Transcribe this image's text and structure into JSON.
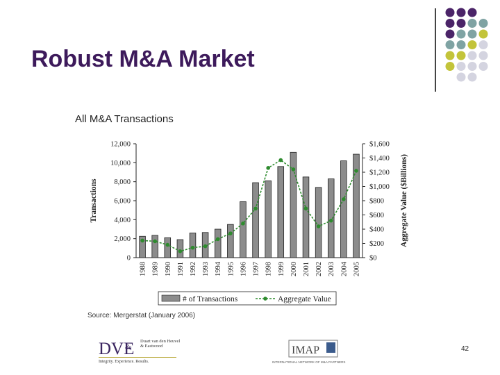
{
  "slide": {
    "title": "Robust M&A Market",
    "page_number": "42",
    "source": "Source: Mergerstat (January 2006)"
  },
  "colors": {
    "title": "#3d1a5b",
    "bar": "#8c8c8c",
    "line": "#2e8b2e",
    "dot_purple": "#4b2468",
    "dot_teal": "#7fa3a3",
    "dot_olive": "#c3c43a",
    "dot_grey": "#d4d4e0"
  },
  "logos": {
    "dve": {
      "mark": "DVE",
      "amp": "&",
      "firm": "Duart van den Heuvel & Eastwood",
      "tagline": "Integrity. Experience. Results."
    },
    "imap": {
      "mark": "IMAP",
      "tagline": "INTERNATIONAL NETWORK OF M&A PARTNERS"
    }
  },
  "chart_data": {
    "type": "bar",
    "title": "All M&A Transactions",
    "categories": [
      "1988",
      "1989",
      "1990",
      "1991",
      "1992",
      "1993",
      "1994",
      "1995",
      "1996",
      "1997",
      "1998",
      "1999",
      "2000",
      "2001",
      "2002",
      "2003",
      "2004",
      "2005"
    ],
    "series": [
      {
        "name": "# of Transactions",
        "type": "bar",
        "axis": "left",
        "values": [
          2250,
          2350,
          2100,
          1900,
          2600,
          2650,
          3000,
          3500,
          5900,
          7900,
          8100,
          9600,
          11100,
          8500,
          7400,
          8300,
          10200,
          10900
        ]
      },
      {
        "name": "Aggregate Value",
        "type": "line",
        "axis": "right",
        "values": [
          240,
          230,
          180,
          90,
          140,
          160,
          260,
          340,
          480,
          690,
          1260,
          1370,
          1240,
          690,
          440,
          520,
          820,
          1220
        ]
      }
    ],
    "ylabel": "Transactions",
    "ylabel_right": "Aggregate Value ($Billions)",
    "ylim": [
      0,
      12000
    ],
    "ylim_right": [
      0,
      1600
    ],
    "yticks": [
      0,
      2000,
      4000,
      6000,
      8000,
      10000,
      12000
    ],
    "yticks_right": [
      0,
      200,
      400,
      600,
      800,
      1000,
      1200,
      1400,
      1600
    ],
    "ytick_labels": [
      "0",
      "2,000",
      "4,000",
      "6,000",
      "8,000",
      "10,000",
      "12,000"
    ],
    "ytick_labels_right": [
      "$0",
      "$200",
      "$400",
      "$600",
      "$800",
      "$1,000",
      "$1,200",
      "$1,400",
      "$1,600"
    ],
    "grid": false,
    "legend": "bottom"
  }
}
